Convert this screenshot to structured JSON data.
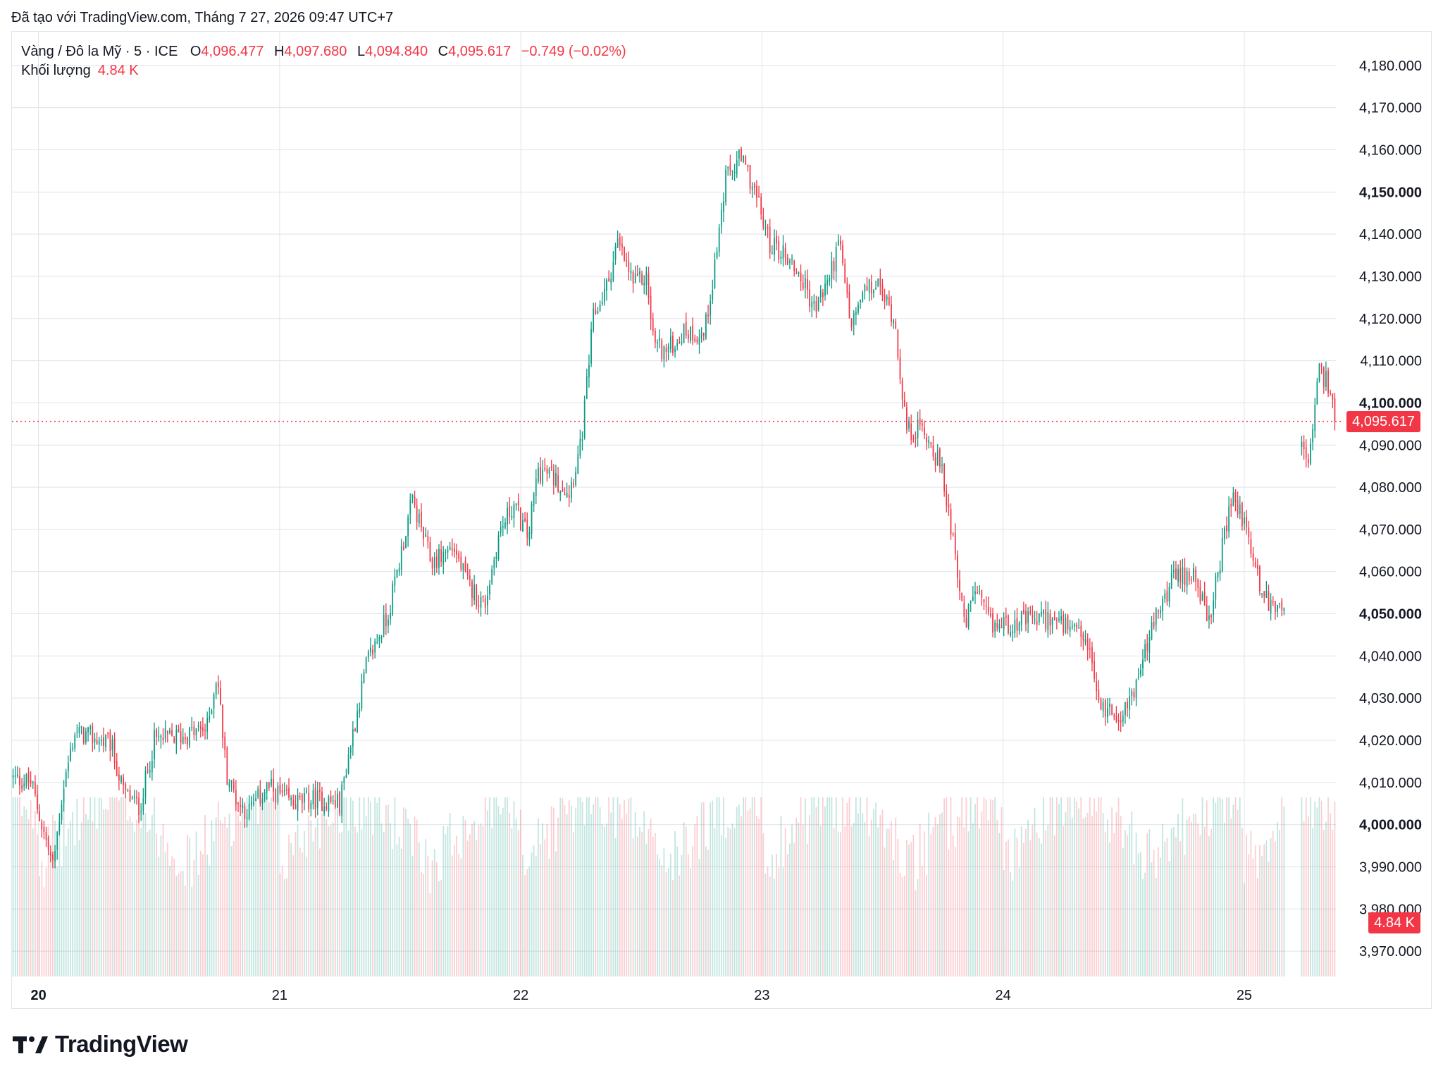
{
  "header": {
    "created_with": "Đã tạo với TradingView.com, Tháng 7 27, 2026 09:47 UTC+7"
  },
  "legend": {
    "symbol": "Vàng / Đô la Mỹ · 5 · ICE",
    "open_label": "O",
    "open": "4,096.477",
    "high_label": "H",
    "high": "4,097.680",
    "low_label": "L",
    "low": "4,094.840",
    "close_label": "C",
    "close": "4,095.617",
    "change": "−0.749 (−0.02%)",
    "volume_label": "Khối lượng",
    "volume": "4.84 K"
  },
  "price_badge": "4,095.617",
  "volume_badge": "4.84 K",
  "footer": {
    "brand": "TradingView"
  },
  "colors": {
    "up": "#089981",
    "down": "#f23645",
    "grid": "#e0e3eb",
    "text": "#131722"
  },
  "chart_data": {
    "type": "candlestick",
    "title": "Vàng / Đô la Mỹ · 5 · ICE",
    "y_ticks": [
      {
        "value": 4180,
        "label": "4,180.000",
        "bold": false
      },
      {
        "value": 4170,
        "label": "4,170.000",
        "bold": false
      },
      {
        "value": 4160,
        "label": "4,160.000",
        "bold": false
      },
      {
        "value": 4150,
        "label": "4,150.000",
        "bold": true
      },
      {
        "value": 4140,
        "label": "4,140.000",
        "bold": false
      },
      {
        "value": 4130,
        "label": "4,130.000",
        "bold": false
      },
      {
        "value": 4120,
        "label": "4,120.000",
        "bold": false
      },
      {
        "value": 4110,
        "label": "4,110.000",
        "bold": false
      },
      {
        "value": 4100,
        "label": "4,100.000",
        "bold": true
      },
      {
        "value": 4090,
        "label": "4,090.000",
        "bold": false
      },
      {
        "value": 4080,
        "label": "4,080.000",
        "bold": false
      },
      {
        "value": 4070,
        "label": "4,070.000",
        "bold": false
      },
      {
        "value": 4060,
        "label": "4,060.000",
        "bold": false
      },
      {
        "value": 4050,
        "label": "4,050.000",
        "bold": true
      },
      {
        "value": 4040,
        "label": "4,040.000",
        "bold": false
      },
      {
        "value": 4030,
        "label": "4,030.000",
        "bold": false
      },
      {
        "value": 4020,
        "label": "4,020.000",
        "bold": false
      },
      {
        "value": 4010,
        "label": "4,010.000",
        "bold": false
      },
      {
        "value": 4000,
        "label": "4,000.000",
        "bold": true
      },
      {
        "value": 3990,
        "label": "3,990.000",
        "bold": false
      },
      {
        "value": 3980,
        "label": "3,980.000",
        "bold": false
      },
      {
        "value": 3970,
        "label": "3,970.000",
        "bold": false
      }
    ],
    "x_ticks": [
      {
        "day": 20,
        "label": "20",
        "bold": true
      },
      {
        "day": 21,
        "label": "21",
        "bold": false
      },
      {
        "day": 22,
        "label": "22",
        "bold": false
      },
      {
        "day": 23,
        "label": "23",
        "bold": false
      },
      {
        "day": 24,
        "label": "24",
        "bold": false
      },
      {
        "day": 25,
        "label": "25",
        "bold": false
      }
    ],
    "x_range": [
      19.89,
      25.38
    ],
    "y_range": [
      3964,
      4188
    ],
    "last_price": 4095.617,
    "price_path": [
      {
        "t": 19.89,
        "p": 4011
      },
      {
        "t": 19.97,
        "p": 4010
      },
      {
        "t": 20.0,
        "p": 4003
      },
      {
        "t": 20.06,
        "p": 3990
      },
      {
        "t": 20.1,
        "p": 4008
      },
      {
        "t": 20.15,
        "p": 4022
      },
      {
        "t": 20.3,
        "p": 4019
      },
      {
        "t": 20.35,
        "p": 4008
      },
      {
        "t": 20.42,
        "p": 4004
      },
      {
        "t": 20.48,
        "p": 4020
      },
      {
        "t": 20.6,
        "p": 4021
      },
      {
        "t": 20.7,
        "p": 4023
      },
      {
        "t": 20.74,
        "p": 4036
      },
      {
        "t": 20.78,
        "p": 4012
      },
      {
        "t": 20.83,
        "p": 4005
      },
      {
        "t": 20.87,
        "p": 4003
      },
      {
        "t": 20.95,
        "p": 4009
      },
      {
        "t": 21.05,
        "p": 4005
      },
      {
        "t": 21.15,
        "p": 4006
      },
      {
        "t": 21.25,
        "p": 4005
      },
      {
        "t": 21.28,
        "p": 4015
      },
      {
        "t": 21.36,
        "p": 4038
      },
      {
        "t": 21.45,
        "p": 4050
      },
      {
        "t": 21.55,
        "p": 4077
      },
      {
        "t": 21.63,
        "p": 4062
      },
      {
        "t": 21.72,
        "p": 4066
      },
      {
        "t": 21.78,
        "p": 4057
      },
      {
        "t": 21.85,
        "p": 4052
      },
      {
        "t": 21.91,
        "p": 4069
      },
      {
        "t": 21.97,
        "p": 4076
      },
      {
        "t": 22.03,
        "p": 4068
      },
      {
        "t": 22.07,
        "p": 4084
      },
      {
        "t": 22.12,
        "p": 4083
      },
      {
        "t": 22.2,
        "p": 4079
      },
      {
        "t": 22.25,
        "p": 4090
      },
      {
        "t": 22.3,
        "p": 4120
      },
      {
        "t": 22.36,
        "p": 4128
      },
      {
        "t": 22.4,
        "p": 4138
      },
      {
        "t": 22.47,
        "p": 4128
      },
      {
        "t": 22.52,
        "p": 4130
      },
      {
        "t": 22.55,
        "p": 4115
      },
      {
        "t": 22.6,
        "p": 4112
      },
      {
        "t": 22.68,
        "p": 4117
      },
      {
        "t": 22.76,
        "p": 4116
      },
      {
        "t": 22.8,
        "p": 4131
      },
      {
        "t": 22.85,
        "p": 4153
      },
      {
        "t": 22.91,
        "p": 4158
      },
      {
        "t": 22.96,
        "p": 4152
      },
      {
        "t": 23.03,
        "p": 4138
      },
      {
        "t": 23.1,
        "p": 4135
      },
      {
        "t": 23.16,
        "p": 4130
      },
      {
        "t": 23.22,
        "p": 4122
      },
      {
        "t": 23.28,
        "p": 4130
      },
      {
        "t": 23.32,
        "p": 4138
      },
      {
        "t": 23.37,
        "p": 4118
      },
      {
        "t": 23.42,
        "p": 4126
      },
      {
        "t": 23.48,
        "p": 4128
      },
      {
        "t": 23.55,
        "p": 4120
      },
      {
        "t": 23.6,
        "p": 4093
      },
      {
        "t": 23.67,
        "p": 4094
      },
      {
        "t": 23.74,
        "p": 4085
      },
      {
        "t": 23.8,
        "p": 4066
      },
      {
        "t": 23.84,
        "p": 4046
      },
      {
        "t": 23.88,
        "p": 4056
      },
      {
        "t": 23.95,
        "p": 4047
      },
      {
        "t": 24.05,
        "p": 4048
      },
      {
        "t": 24.2,
        "p": 4049
      },
      {
        "t": 24.35,
        "p": 4043
      },
      {
        "t": 24.4,
        "p": 4028
      },
      {
        "t": 24.5,
        "p": 4026
      },
      {
        "t": 24.56,
        "p": 4035
      },
      {
        "t": 24.62,
        "p": 4047
      },
      {
        "t": 24.7,
        "p": 4058
      },
      {
        "t": 24.8,
        "p": 4060
      },
      {
        "t": 24.85,
        "p": 4046
      },
      {
        "t": 24.9,
        "p": 4063
      },
      {
        "t": 24.95,
        "p": 4078
      },
      {
        "t": 25.0,
        "p": 4072
      },
      {
        "t": 25.06,
        "p": 4058
      },
      {
        "t": 25.1,
        "p": 4052
      },
      {
        "t": 25.17,
        "p": 4053
      },
      {
        "t": 25.18,
        "p": null
      },
      {
        "t": 25.23,
        "p": 4090
      },
      {
        "t": 25.27,
        "p": 4086
      },
      {
        "t": 25.31,
        "p": 4108
      },
      {
        "t": 25.35,
        "p": 4104
      },
      {
        "t": 25.38,
        "p": 4095.6
      }
    ]
  }
}
